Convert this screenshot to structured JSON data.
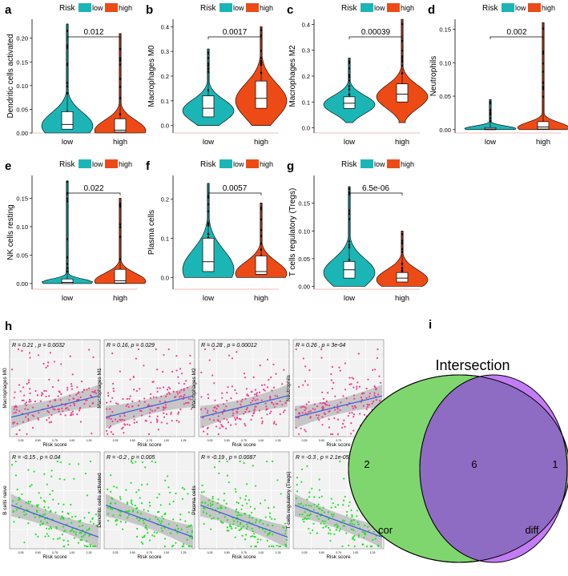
{
  "colors": {
    "low": "#1cb5b5",
    "high": "#ee4a16",
    "pos": "#ee3f8e",
    "neg": "#22e02a",
    "line": "#3a5bdc",
    "band": "#a8a8a8",
    "venn_cor": "#80d66e",
    "venn_diff": "#c37cf3",
    "venn_both": "#8f6cc3",
    "panel_bg": "#f2f2f2"
  },
  "legend": {
    "title": "Risk",
    "low": "low",
    "high": "high"
  },
  "violin_panels": [
    {
      "letter": "a",
      "ylabel": "Dendritic cells activated",
      "ylim": [
        0,
        0.24
      ],
      "ticks": [
        0,
        0.05,
        0.1,
        0.15,
        0.2
      ],
      "tick_labels": [
        "0.00",
        "0.05",
        "0.10",
        "0.15",
        "0.20"
      ],
      "p": "0.012",
      "groups": [
        "low",
        "high"
      ],
      "low": {
        "min": 0,
        "q1": 0.008,
        "median": 0.018,
        "q3": 0.045,
        "max": 0.23,
        "mode": 0.015,
        "spread": 0.028
      },
      "high": {
        "min": 0,
        "q1": 0.002,
        "median": 0.006,
        "q3": 0.03,
        "max": 0.21,
        "mode": 0.005,
        "spread": 0.022
      }
    },
    {
      "letter": "b",
      "ylabel": "Macrophages M0",
      "ylim": [
        -0.03,
        0.43
      ],
      "ticks": [
        0,
        0.1,
        0.2,
        0.3,
        0.4
      ],
      "tick_labels": [
        "0.0",
        "0.1",
        "0.2",
        "0.3",
        "0.4"
      ],
      "p": "0.0017",
      "groups": [
        "low",
        "high"
      ],
      "low": {
        "min": 0,
        "q1": 0.035,
        "median": 0.07,
        "q3": 0.12,
        "max": 0.31,
        "mode": 0.06,
        "spread": 0.045
      },
      "high": {
        "min": 0,
        "q1": 0.07,
        "median": 0.11,
        "q3": 0.18,
        "max": 0.4,
        "mode": 0.1,
        "spread": 0.07
      }
    },
    {
      "letter": "c",
      "ylabel": "Macrophages M2",
      "ylim": [
        -0.02,
        0.42
      ],
      "ticks": [
        0,
        0.1,
        0.2,
        0.3,
        0.4
      ],
      "tick_labels": [
        "0.0",
        "0.1",
        "0.2",
        "0.3",
        "0.4"
      ],
      "p": "0.00039",
      "groups": [
        "low",
        "high"
      ],
      "low": {
        "min": 0.02,
        "q1": 0.075,
        "median": 0.095,
        "q3": 0.12,
        "max": 0.27,
        "mode": 0.09,
        "spread": 0.035
      },
      "high": {
        "min": 0.02,
        "q1": 0.1,
        "median": 0.13,
        "q3": 0.17,
        "max": 0.42,
        "mode": 0.12,
        "spread": 0.045
      }
    },
    {
      "letter": "d",
      "ylabel": "Neutrophils",
      "ylim": [
        -0.005,
        0.165
      ],
      "ticks": [
        0,
        0.05,
        0.1,
        0.15
      ],
      "tick_labels": [
        "0.00",
        "0.05",
        "0.10",
        "0.15"
      ],
      "p": "0.002",
      "groups": [
        "low",
        "high"
      ],
      "low": {
        "min": 0,
        "q1": 0,
        "median": 0.001,
        "q3": 0.003,
        "max": 0.045,
        "mode": 0.0015,
        "spread": 0.004
      },
      "high": {
        "min": 0,
        "q1": 0.001,
        "median": 0.004,
        "q3": 0.012,
        "max": 0.16,
        "mode": 0.003,
        "spread": 0.008
      }
    },
    {
      "letter": "e",
      "ylabel": "NK cells resting",
      "ylim": [
        -0.01,
        0.19
      ],
      "ticks": [
        0,
        0.05,
        0.1,
        0.15
      ],
      "tick_labels": [
        "0.00",
        "0.05",
        "0.10",
        "0.15"
      ],
      "p": "0.022",
      "groups": [
        "low",
        "high"
      ],
      "low": {
        "min": 0,
        "q1": 0,
        "median": 0.002,
        "q3": 0.008,
        "max": 0.18,
        "mode": 0.002,
        "spread": 0.006
      },
      "high": {
        "min": 0,
        "q1": 0.001,
        "median": 0.005,
        "q3": 0.025,
        "max": 0.15,
        "mode": 0.004,
        "spread": 0.014
      }
    },
    {
      "letter": "f",
      "ylabel": "Plasma cells",
      "ylim": [
        -0.03,
        0.26
      ],
      "ticks": [
        0,
        0.1,
        0.2
      ],
      "tick_labels": [
        "0.0",
        "0.1",
        "0.2"
      ],
      "p": "0.0057",
      "groups": [
        "low",
        "high"
      ],
      "low": {
        "min": 0,
        "q1": 0.015,
        "median": 0.04,
        "q3": 0.1,
        "max": 0.24,
        "mode": 0.02,
        "spread": 0.05
      },
      "high": {
        "min": 0,
        "q1": 0.008,
        "median": 0.015,
        "q3": 0.055,
        "max": 0.19,
        "mode": 0.01,
        "spread": 0.03
      }
    },
    {
      "letter": "g",
      "ylabel": "T cells regulatory (Tregs)",
      "ylim": [
        -0.005,
        0.2
      ],
      "ticks": [
        0,
        0.05,
        0.1,
        0.15
      ],
      "tick_labels": [
        "0.00",
        "0.05",
        "0.10",
        "0.15"
      ],
      "p": "6.5e-06",
      "groups": [
        "low",
        "high"
      ],
      "low": {
        "min": 0,
        "q1": 0.015,
        "median": 0.03,
        "q3": 0.045,
        "max": 0.18,
        "mode": 0.025,
        "spread": 0.025
      },
      "high": {
        "min": 0,
        "q1": 0.008,
        "median": 0.015,
        "q3": 0.025,
        "max": 0.1,
        "mode": 0.012,
        "spread": 0.018
      }
    }
  ],
  "scatter_label": "h",
  "scatter_xlabel": "Risk score",
  "scatter_panels": [
    {
      "ylabel": "Macrophages M0",
      "stat": "R = 0.21 , p = 0.0032",
      "sign": "pos",
      "fit": [
        0.06,
        0.13
      ]
    },
    {
      "ylabel": "Macrophages M1",
      "stat": "R = 0.16, p = 0.029",
      "sign": "pos",
      "fit": [
        0.045,
        0.085
      ]
    },
    {
      "ylabel": "Macrophages M2",
      "stat": "R = 0.28 , p = 0.00012",
      "sign": "pos",
      "fit": [
        0.07,
        0.16
      ]
    },
    {
      "ylabel": "Neutrophils",
      "stat": "R = 0.26 , p = 3e-04",
      "sign": "pos",
      "fit": [
        0.004,
        0.018
      ]
    },
    {
      "ylabel": "B cells naive",
      "stat": "R = -0.15 , p = 0.04",
      "sign": "neg",
      "fit": [
        0.11,
        0.05
      ]
    },
    {
      "ylabel": "Dendritic cells activated",
      "stat": "R = -0.2 , p = 0.005",
      "sign": "neg",
      "fit": [
        0.035,
        0.01
      ]
    },
    {
      "ylabel": "Plasma cells",
      "stat": "R = -0.19 , p = 0.0087",
      "sign": "neg",
      "fit": [
        0.1,
        0.035
      ]
    },
    {
      "ylabel": "T cells regulatory (Tregs)",
      "stat": "R = -0.3 , p = 2.1e-05",
      "sign": "neg",
      "fit": [
        0.055,
        0.005
      ]
    }
  ],
  "venn": {
    "label": "i",
    "title": "Intersection",
    "left_only": "2",
    "both": "6",
    "right_only": "1",
    "left_name": "cor",
    "right_name": "diff"
  }
}
